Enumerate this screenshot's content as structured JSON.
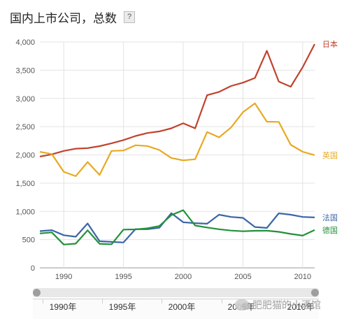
{
  "header": {
    "title": "国内上市公司，总数",
    "help_label": "?"
  },
  "chart_data": {
    "type": "line",
    "title": "国内上市公司，总数",
    "xlabel": "",
    "ylabel": "",
    "xlim": [
      1988,
      2011
    ],
    "ylim": [
      0,
      4000
    ],
    "y_ticks": [
      0,
      500,
      1000,
      1500,
      2000,
      2500,
      3000,
      3500,
      4000
    ],
    "y_tick_labels": [
      "0",
      "500",
      "1,000",
      "1,500",
      "2,000",
      "2,500",
      "3,000",
      "3,500",
      "4,000"
    ],
    "x_ticks": [
      1990,
      1995,
      2000,
      2005,
      2010
    ],
    "x_tick_labels": [
      "1990",
      "1995",
      "2000",
      "2005",
      "2010"
    ],
    "grid": true,
    "legend": "right-end labels",
    "x": [
      1988,
      1989,
      1990,
      1991,
      1992,
      1993,
      1994,
      1995,
      1996,
      1997,
      1998,
      1999,
      2000,
      2001,
      2002,
      2003,
      2004,
      2005,
      2006,
      2007,
      2008,
      2009,
      2010,
      2011
    ],
    "series": [
      {
        "name": "日本",
        "color": "#c0432e",
        "values": [
          1970,
          2010,
          2070,
          2110,
          2120,
          2155,
          2205,
          2263,
          2334,
          2387,
          2416,
          2470,
          2561,
          2471,
          3058,
          3116,
          3220,
          3279,
          3362,
          3844,
          3299,
          3208,
          3553,
          3961
        ]
      },
      {
        "name": "英国",
        "color": "#e8a920",
        "values": [
          2054,
          2015,
          1701,
          1623,
          1874,
          1646,
          2070,
          2078,
          2171,
          2157,
          2087,
          1945,
          1904,
          1923,
          2405,
          2311,
          2486,
          2757,
          2913,
          2588,
          2584,
          2179,
          2056,
          1996
        ]
      },
      {
        "name": "法国",
        "color": "#3a66a8",
        "values": [
          650,
          668,
          578,
          551,
          786,
          472,
          459,
          450,
          686,
          683,
          710,
          968,
          808,
          791,
          781,
          941,
          902,
          885,
          723,
          707,
          966,
          941,
          901,
          893
        ]
      },
      {
        "name": "德国",
        "color": "#22913a",
        "values": [
          609,
          628,
          413,
          428,
          665,
          426,
          417,
          678,
          681,
          700,
          741,
          933,
          1022,
          749,
          715,
          684,
          660,
          648,
          656,
          658,
          638,
          601,
          571,
          670
        ]
      }
    ]
  },
  "range_selector": {
    "labels": [
      "1990年",
      "1995年",
      "2000年",
      "2005年",
      "2010年"
    ]
  },
  "watermark": {
    "text": "肥肥猫的小酒馆"
  }
}
